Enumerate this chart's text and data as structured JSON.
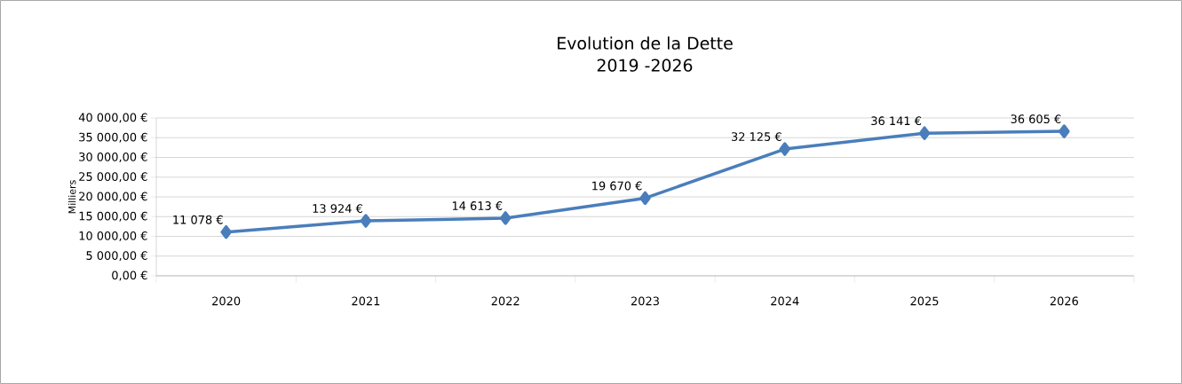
{
  "chart_data": {
    "type": "line",
    "title": "Evolution de la Dette",
    "subtitle": "2019 -2026",
    "ylabel": "Milliers",
    "categories": [
      "2020",
      "2021",
      "2022",
      "2023",
      "2024",
      "2025",
      "2026"
    ],
    "values": [
      11078,
      13924,
      14613,
      19670,
      32125,
      36141,
      36605
    ],
    "value_labels": [
      "11 078 €",
      "13 924 €",
      "14 613 €",
      "19 670 €",
      "32 125 €",
      "36 141 €",
      "36 605 €"
    ],
    "color": "#4a7ebb",
    "marker": "diamond",
    "grid": "y",
    "ylim": [
      0,
      40000
    ],
    "yticks": [
      {
        "value": 0,
        "label": "0,00 €"
      },
      {
        "value": 5000,
        "label": "5 000,00 €"
      },
      {
        "value": 10000,
        "label": "10 000,00 €"
      },
      {
        "value": 15000,
        "label": "15 000,00 €"
      },
      {
        "value": 20000,
        "label": "20 000,00 €"
      },
      {
        "value": 25000,
        "label": "25 000,00 €"
      },
      {
        "value": 30000,
        "label": "30 000,00 €"
      },
      {
        "value": 35000,
        "label": "35 000,00 €"
      },
      {
        "value": 40000,
        "label": "40 000,00 €"
      }
    ]
  }
}
